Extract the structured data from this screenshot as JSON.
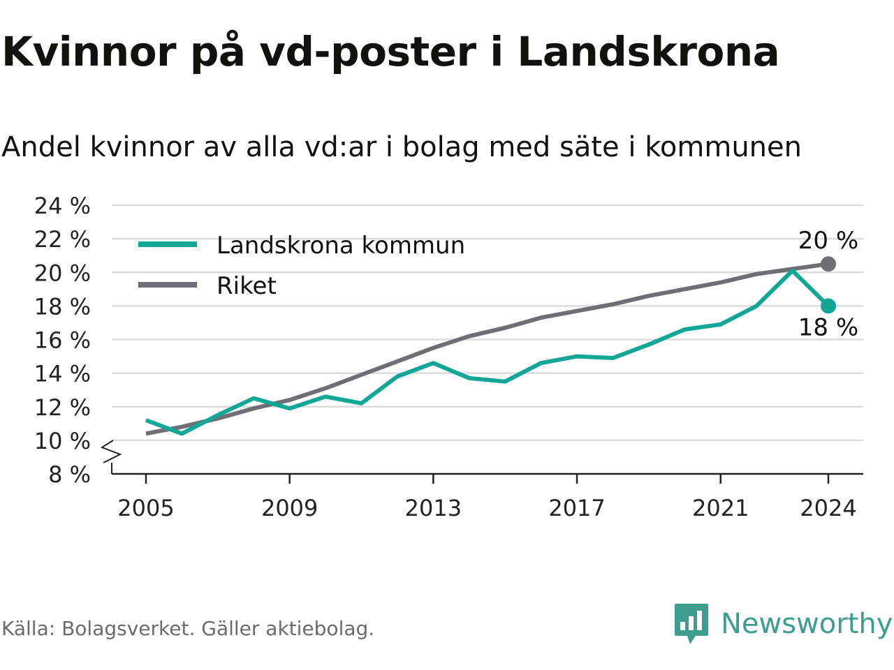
{
  "header": {
    "title": "Kvinnor på vd-poster i Landskrona",
    "subtitle": "Andel kvinnor av alla vd:ar i bolag med säte i kommunen"
  },
  "footer": {
    "source": "Källa: Bolagsverket. Gäller aktiebolag.",
    "brand": "Newsworthy"
  },
  "colors": {
    "landskrona": "#12a697",
    "riket": "#6f6e76",
    "grid": "#dcdcdc",
    "axis": "#222222",
    "brand": "#3d9e8f"
  },
  "chart_data": {
    "type": "line",
    "x": [
      2005,
      2006,
      2007,
      2008,
      2009,
      2010,
      2011,
      2012,
      2013,
      2014,
      2015,
      2016,
      2017,
      2018,
      2019,
      2020,
      2021,
      2022,
      2023,
      2024
    ],
    "series": [
      {
        "name": "Landskrona kommun",
        "color": "#12a697",
        "values": [
          11.2,
          10.4,
          11.5,
          12.5,
          11.9,
          12.6,
          12.2,
          13.8,
          14.6,
          13.7,
          13.5,
          14.6,
          15.0,
          14.9,
          15.7,
          16.6,
          16.9,
          18.0,
          20.1,
          18.0
        ]
      },
      {
        "name": "Riket",
        "color": "#6f6e76",
        "values": [
          10.4,
          10.8,
          11.3,
          11.9,
          12.4,
          13.1,
          13.9,
          14.7,
          15.5,
          16.2,
          16.7,
          17.3,
          17.7,
          18.1,
          18.6,
          19.0,
          19.4,
          19.9,
          20.2,
          20.5
        ]
      }
    ],
    "end_labels": [
      {
        "series": "Riket",
        "text": "20 %"
      },
      {
        "series": "Landskrona kommun",
        "text": "18 %"
      }
    ],
    "x_ticks": [
      "2005",
      "2009",
      "2013",
      "2017",
      "2021",
      "2024"
    ],
    "x_tick_values": [
      2005,
      2009,
      2013,
      2017,
      2021,
      2024
    ],
    "y_ticks": [
      "8 %",
      "10 %",
      "12 %",
      "14 %",
      "16 %",
      "18 %",
      "20 %",
      "22 %",
      "24 %"
    ],
    "y_tick_values": [
      8,
      10,
      12,
      14,
      16,
      18,
      20,
      22,
      24
    ],
    "ylim": [
      8,
      24
    ],
    "xlim": [
      2004,
      2025
    ],
    "axis_break": true,
    "grid": true,
    "legend_position": "top-left"
  }
}
